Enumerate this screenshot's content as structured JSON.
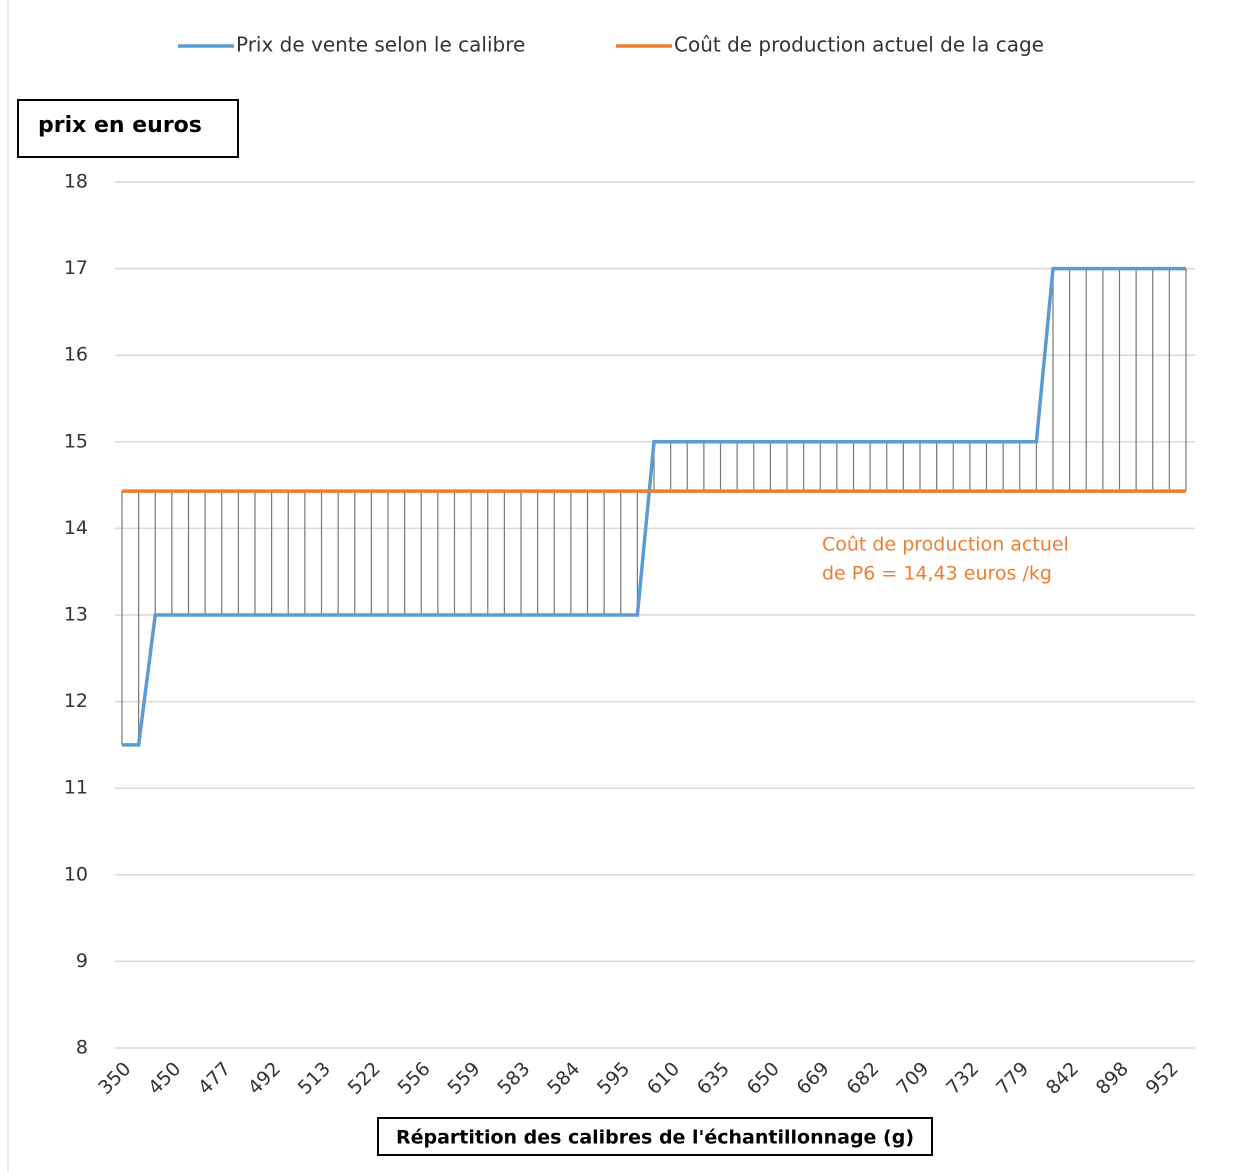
{
  "chart_data": {
    "type": "line",
    "y_axis_label": "prix en euros",
    "x_axis_label": "Répartition des calibres de l'échantillonnage (g)",
    "annotation": [
      "Coût de production actuel",
      "de P6 = 14,43 euros /kg"
    ],
    "categories": [
      350,
      null,
      null,
      450,
      null,
      null,
      477,
      null,
      null,
      492,
      null,
      null,
      513,
      null,
      null,
      522,
      null,
      null,
      556,
      null,
      null,
      559,
      null,
      null,
      583,
      null,
      null,
      584,
      null,
      null,
      595,
      null,
      null,
      610,
      null,
      null,
      635,
      null,
      null,
      650,
      null,
      null,
      669,
      null,
      null,
      682,
      null,
      null,
      709,
      null,
      null,
      732,
      null,
      null,
      779,
      null,
      null,
      842,
      null,
      null,
      898,
      null,
      null,
      952,
      null
    ],
    "series": [
      {
        "name": "Prix de vente selon le calibre",
        "color": "#5b9bd5",
        "values": [
          11.5,
          11.5,
          13,
          13,
          13,
          13,
          13,
          13,
          13,
          13,
          13,
          13,
          13,
          13,
          13,
          13,
          13,
          13,
          13,
          13,
          13,
          13,
          13,
          13,
          13,
          13,
          13,
          13,
          13,
          13,
          13,
          13,
          15,
          15,
          15,
          15,
          15,
          15,
          15,
          15,
          15,
          15,
          15,
          15,
          15,
          15,
          15,
          15,
          15,
          15,
          15,
          15,
          15,
          15,
          15,
          15,
          17,
          17,
          17,
          17,
          17,
          17,
          17,
          17,
          17
        ]
      },
      {
        "name": "Coût de production actuel de la cage",
        "color": "#ed7d31",
        "values": [
          14.43,
          14.43,
          14.43,
          14.43,
          14.43,
          14.43,
          14.43,
          14.43,
          14.43,
          14.43,
          14.43,
          14.43,
          14.43,
          14.43,
          14.43,
          14.43,
          14.43,
          14.43,
          14.43,
          14.43,
          14.43,
          14.43,
          14.43,
          14.43,
          14.43,
          14.43,
          14.43,
          14.43,
          14.43,
          14.43,
          14.43,
          14.43,
          14.43,
          14.43,
          14.43,
          14.43,
          14.43,
          14.43,
          14.43,
          14.43,
          14.43,
          14.43,
          14.43,
          14.43,
          14.43,
          14.43,
          14.43,
          14.43,
          14.43,
          14.43,
          14.43,
          14.43,
          14.43,
          14.43,
          14.43,
          14.43,
          14.43,
          14.43,
          14.43,
          14.43,
          14.43,
          14.43,
          14.43,
          14.43,
          14.43
        ]
      }
    ],
    "ylim": [
      8,
      18
    ],
    "yticks": [
      8,
      9,
      10,
      11,
      12,
      13,
      14,
      15,
      16,
      17,
      18
    ],
    "grid": true,
    "hi_lo_lines": true,
    "legend": "top",
    "annotation_color": "#ed7d31"
  }
}
